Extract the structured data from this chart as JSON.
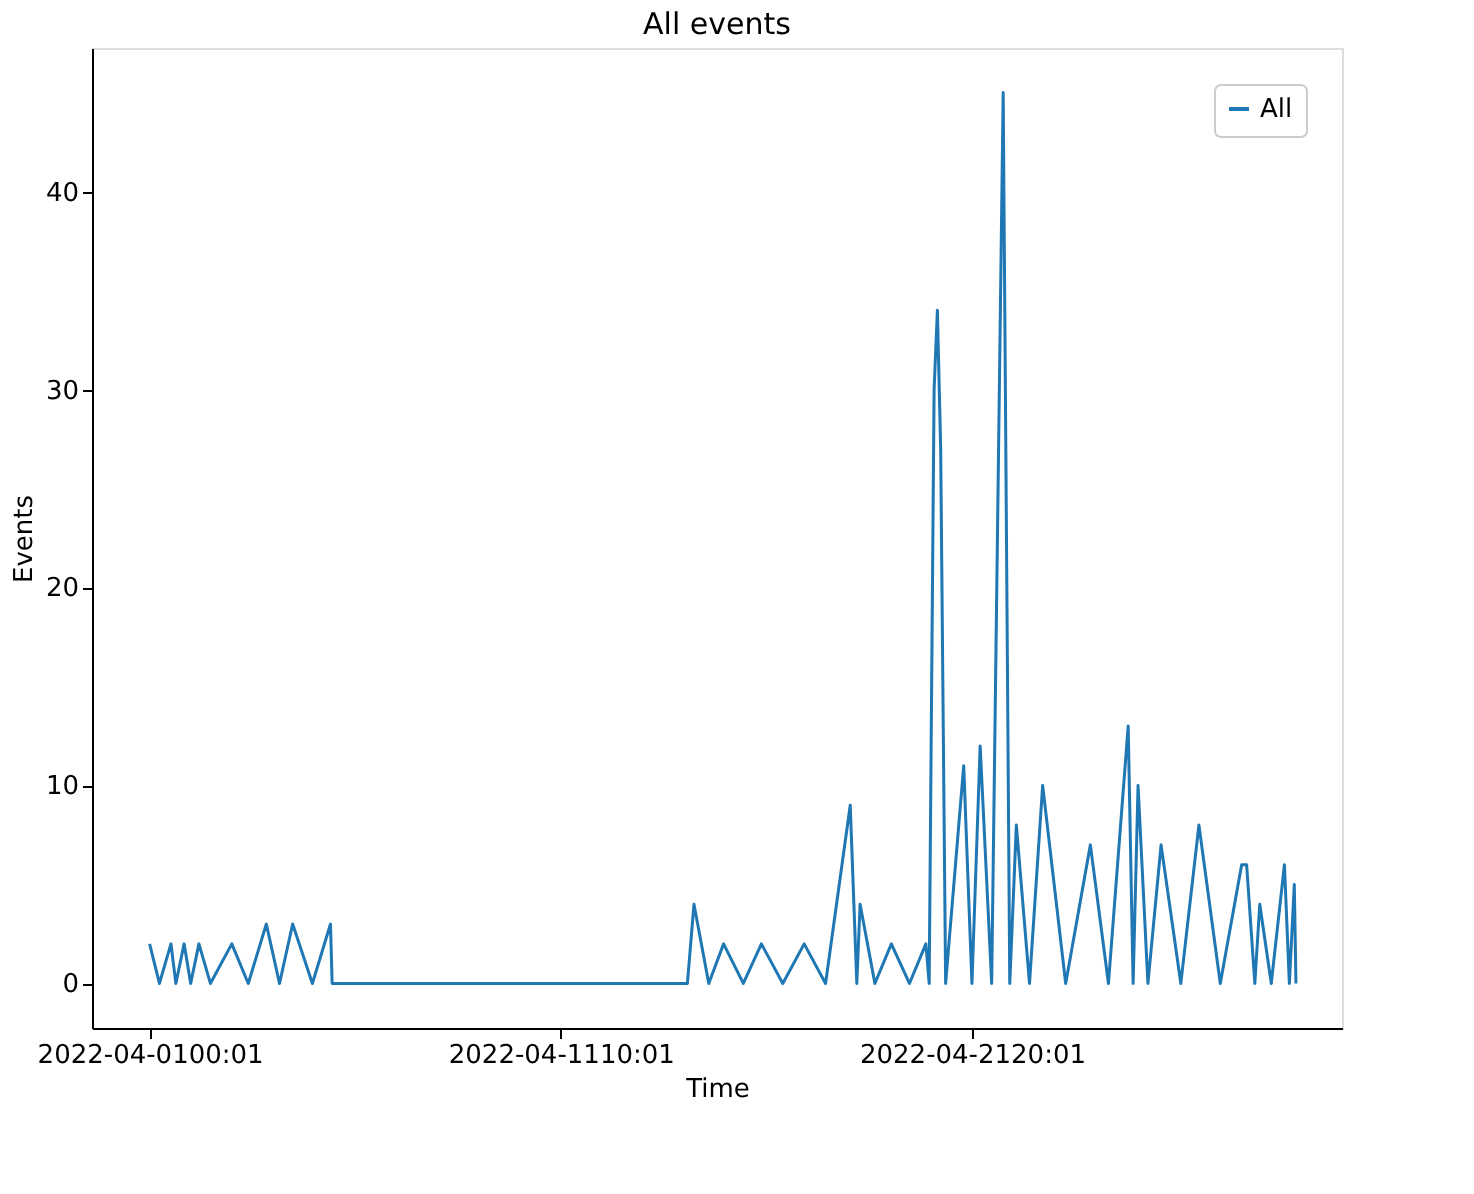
{
  "chart_data": {
    "type": "line",
    "title": "All events",
    "xlabel": "Time",
    "ylabel": "Events",
    "x": [
      "2022-04-01T00:01",
      "2022-04-01T06:00",
      "2022-04-01T13:00",
      "2022-04-01T16:00",
      "2022-04-01T21:00",
      "2022-04-02T01:00",
      "2022-04-02T06:00",
      "2022-04-02T13:00",
      "2022-04-03T02:00",
      "2022-04-03T12:00",
      "2022-04-03T23:00",
      "2022-04-04T07:00",
      "2022-04-04T15:00",
      "2022-04-05T03:00",
      "2022-04-05T14:00",
      "2022-04-05T15:00",
      "2022-04-14T15:00",
      "2022-04-14T19:00",
      "2022-04-15T04:00",
      "2022-04-15T13:00",
      "2022-04-16T01:00",
      "2022-04-16T12:00",
      "2022-04-17T01:00",
      "2022-04-17T14:00",
      "2022-04-18T03:00",
      "2022-04-18T18:00",
      "2022-04-18T22:00",
      "2022-04-19T00:00",
      "2022-04-19T09:00",
      "2022-04-19T19:00",
      "2022-04-20T06:00",
      "2022-04-20T16:00",
      "2022-04-20T18:00",
      "2022-04-20T21:00",
      "2022-04-20T23:00",
      "2022-04-21T01:00",
      "2022-04-21T04:00",
      "2022-04-21T15:00",
      "2022-04-21T20:00",
      "2022-04-22T01:00",
      "2022-04-22T08:00",
      "2022-04-22T15:00",
      "2022-04-22T19:00",
      "2022-04-22T23:00",
      "2022-04-23T07:00",
      "2022-04-23T15:00",
      "2022-04-24T05:00",
      "2022-04-24T20:00",
      "2022-04-25T07:00",
      "2022-04-25T19:00",
      "2022-04-25T22:00",
      "2022-04-26T01:00",
      "2022-04-26T07:00",
      "2022-04-26T15:00",
      "2022-04-27T03:00",
      "2022-04-27T14:00",
      "2022-04-28T03:00",
      "2022-04-28T16:00",
      "2022-04-28T19:00",
      "2022-04-29T00:00",
      "2022-04-29T03:00",
      "2022-04-29T10:00",
      "2022-04-29T18:00",
      "2022-04-29T21:00",
      "2022-04-30T00:00",
      "2022-04-30T01:00"
    ],
    "series": [
      {
        "name": "All",
        "color": "#1f77b4",
        "values": [
          2,
          0,
          2,
          0,
          2,
          0,
          2,
          0,
          2,
          0,
          3,
          0,
          3,
          0,
          3,
          0,
          0,
          4,
          0,
          2,
          0,
          2,
          0,
          2,
          0,
          9,
          0,
          4,
          0,
          2,
          0,
          2,
          0,
          30,
          34,
          27,
          0,
          11,
          0,
          12,
          0,
          45,
          0,
          8,
          0,
          10,
          0,
          7,
          0,
          13,
          0,
          10,
          0,
          7,
          0,
          8,
          0,
          6,
          6,
          0,
          4,
          0,
          6,
          0,
          5,
          0
        ]
      }
    ],
    "xlim": [
      "2022-03-30T13:00",
      "2022-05-01T05:00"
    ],
    "xticks": [
      {
        "value": "2022-04-01T00:01",
        "label": "2022-04-0100:01"
      },
      {
        "value": "2022-04-11T10:01",
        "label": "2022-04-1110:01"
      },
      {
        "value": "2022-04-21T20:01",
        "label": "2022-04-2120:01"
      }
    ],
    "ylim": [
      -2.25,
      47.25
    ],
    "yticks": [
      0,
      10,
      20,
      30,
      40
    ],
    "grid": false,
    "legend": "top right"
  }
}
